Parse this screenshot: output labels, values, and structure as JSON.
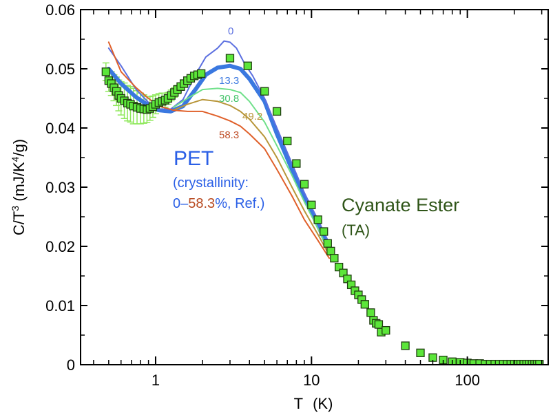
{
  "chart_data": {
    "type": "line",
    "x_scale": "log",
    "xlim": [
      0.33,
      330
    ],
    "ylim": [
      0,
      0.06
    ],
    "xlabel_main": "T",
    "xlabel_unit": "(K)",
    "ylabel_parts": {
      "c": "C/T",
      "exp3": "3",
      "mid": " (mJ/K",
      "exp4": "4",
      "end": "/g)"
    },
    "x_ticks": [
      1,
      10,
      100
    ],
    "x_tick_labels": [
      "1",
      "10",
      "100"
    ],
    "y_ticks": [
      0,
      0.01,
      0.02,
      0.03,
      0.04,
      0.05,
      0.06
    ],
    "y_tick_labels": [
      "0",
      "0.01",
      "0.02",
      "0.03",
      "0.04",
      "0.05",
      "0.06"
    ],
    "series": [
      {
        "name": "0",
        "color": "#5b6fe0",
        "width": 2,
        "label": "0",
        "x": [
          0.5,
          0.6,
          0.75,
          0.9,
          1.05,
          1.25,
          1.5,
          1.8,
          2.1,
          2.5,
          2.75,
          3.0,
          3.3,
          3.7,
          4.2,
          5.0,
          6.0,
          7.5,
          9.0,
          11.0,
          13.0
        ],
        "y": [
          0.0535,
          0.0505,
          0.0465,
          0.0443,
          0.0432,
          0.0432,
          0.0448,
          0.049,
          0.052,
          0.0535,
          0.0547,
          0.0545,
          0.0535,
          0.051,
          0.0488,
          0.045,
          0.04,
          0.034,
          0.029,
          0.0245,
          0.0205
        ]
      },
      {
        "name": "13.3",
        "color": "#3a78e0",
        "width": 6,
        "label": "13.3",
        "x": [
          0.5,
          0.6,
          0.75,
          0.9,
          1.05,
          1.25,
          1.5,
          1.8,
          2.1,
          2.5,
          3.0,
          3.5,
          4.0,
          5.0,
          6.0,
          7.5,
          9.0,
          11.0,
          13.0
        ],
        "y": [
          0.05,
          0.0475,
          0.0452,
          0.0438,
          0.043,
          0.0428,
          0.0437,
          0.0465,
          0.049,
          0.0502,
          0.0505,
          0.05,
          0.0483,
          0.0445,
          0.039,
          0.033,
          0.0285,
          0.0235,
          0.0195
        ]
      },
      {
        "name": "30.8",
        "color": "#6fe08a",
        "width": 2,
        "label": "30.8",
        "x": [
          1.3,
          1.6,
          2.0,
          2.5,
          3.0,
          3.5,
          4.0,
          5.0,
          6.0,
          7.5,
          9.0,
          11.0,
          13.0
        ],
        "y": [
          0.0435,
          0.045,
          0.0465,
          0.0467,
          0.0465,
          0.046,
          0.0445,
          0.041,
          0.037,
          0.032,
          0.0275,
          0.023,
          0.019
        ]
      },
      {
        "name": "49.2",
        "color": "#b8963a",
        "width": 2,
        "label": "49.2",
        "x": [
          1.3,
          1.6,
          2.0,
          2.5,
          3.0,
          3.5,
          4.0,
          5.0,
          6.0,
          7.5,
          9.0,
          11.0,
          13.0
        ],
        "y": [
          0.043,
          0.044,
          0.0448,
          0.0445,
          0.0438,
          0.0428,
          0.0415,
          0.0385,
          0.035,
          0.03,
          0.026,
          0.022,
          0.0185
        ]
      },
      {
        "name": "58.3",
        "color": "#e0602a",
        "width": 2,
        "label": "58.3",
        "x": [
          0.5,
          0.6,
          0.75,
          0.9,
          1.05,
          1.3,
          1.6,
          2.0,
          2.5,
          3.0,
          3.5,
          4.0,
          5.0,
          6.0,
          7.5,
          9.0,
          11.0,
          13.0
        ],
        "y": [
          0.0545,
          0.0495,
          0.0468,
          0.045,
          0.0437,
          0.043,
          0.0428,
          0.0428,
          0.042,
          0.0412,
          0.0403,
          0.039,
          0.0365,
          0.033,
          0.0285,
          0.0245,
          0.021,
          0.018
        ]
      }
    ],
    "scatter": {
      "name": "Cyanate Ester (TA)",
      "fill": "#5ce63a",
      "stroke": "#1f3d10",
      "error_color": "#8ee85a",
      "x": [
        0.48,
        0.5,
        0.52,
        0.54,
        0.56,
        0.58,
        0.6,
        0.63,
        0.66,
        0.69,
        0.72,
        0.76,
        0.8,
        0.84,
        0.88,
        0.92,
        0.96,
        1.0,
        1.05,
        1.1,
        1.15,
        1.2,
        1.26,
        1.32,
        1.38,
        1.45,
        1.52,
        1.6,
        1.68,
        1.77,
        1.86,
        1.96,
        3.0,
        3.9,
        5.0,
        6.0,
        7.0,
        8.0,
        9.0,
        10.0,
        11.0,
        12.0,
        12.7,
        13.3,
        14.0,
        15.0,
        16.0,
        17.0,
        18.0,
        19.0,
        20.0,
        21.0,
        22.0,
        24.0,
        25.0,
        26.0,
        27.0,
        28.0,
        30.0,
        40.0,
        50.0,
        60.0,
        70.0,
        80.0,
        90.0,
        100.0,
        110.0,
        120.0,
        130.0,
        140.0,
        150.0,
        160.0,
        170.0,
        180.0,
        190.0,
        200.0,
        210.0,
        220.0,
        230.0,
        240.0,
        250.0,
        260.0,
        270.0,
        280.0,
        290.0
      ],
      "y": [
        0.0495,
        0.048,
        0.0475,
        0.0468,
        0.0462,
        0.0455,
        0.045,
        0.0446,
        0.0442,
        0.044,
        0.0437,
        0.0435,
        0.0433,
        0.0432,
        0.0431,
        0.0433,
        0.0436,
        0.044,
        0.0443,
        0.0445,
        0.0447,
        0.045,
        0.0455,
        0.046,
        0.0465,
        0.047,
        0.0475,
        0.048,
        0.0484,
        0.0488,
        0.049,
        0.0492,
        0.0518,
        0.0505,
        0.0462,
        0.0428,
        0.0378,
        0.034,
        0.0305,
        0.027,
        0.0245,
        0.0225,
        0.0205,
        0.0192,
        0.018,
        0.0165,
        0.0155,
        0.0145,
        0.0135,
        0.0125,
        0.0118,
        0.011,
        0.0102,
        0.0088,
        0.0075,
        0.007,
        0.0068,
        0.0055,
        0.0058,
        0.0032,
        0.002,
        0.0012,
        0.0008,
        0.0005,
        0.0004,
        0.0003,
        0.0002,
        0.0002,
        0.0001,
        0.0001,
        0.0001,
        0.0001,
        0.0001,
        0.0001,
        0.0001,
        0.0001,
        0.0001,
        0.0001,
        0.0001,
        0.0001,
        0.0001,
        0.0001,
        0.0001,
        0.0001,
        0.0001
      ],
      "err": [
        0.0015,
        0.0018,
        0.002,
        0.0022,
        0.0024,
        0.0026,
        0.0028,
        0.003,
        0.003,
        0.003,
        0.003,
        0.0028,
        0.0026,
        0.0024,
        0.0022,
        0.002,
        0.0018,
        0.0016,
        0.0015,
        0.0014,
        0.0012,
        0.001,
        0.0009,
        0.0008,
        0.0007,
        0.0006,
        0.0005,
        0.0004,
        0.0004,
        0.0003,
        0.0003,
        0.0003,
        0.0004,
        0.0004,
        0.0004,
        0.0004,
        0.0004,
        0.0004,
        0.0004,
        0.0004,
        0.0004,
        0.0003,
        0.0003,
        0.0003,
        0.0003,
        0.0003,
        0.0003,
        0.0003,
        0.0003,
        0.0003,
        0.0003,
        0.0003,
        0.0003,
        0.0003,
        0.0003,
        0.0003,
        0.0003,
        0.0003,
        0.0003,
        0.0002,
        0.0002,
        0.0002,
        0.0002,
        0.0002,
        0.0002,
        0.0002,
        0.0002,
        0.0002,
        0.0002,
        0.0002,
        0.0002,
        0.0002,
        0.0002,
        0.0002,
        0.0002,
        0.0002,
        0.0002,
        0.0002,
        0.0002,
        0.0002,
        0.0002,
        0.0002,
        0.0002,
        0.0002,
        0.0002
      ]
    },
    "annotations": {
      "pet_title": "PET",
      "pet_title_color": "#2a5fe6",
      "pet_line1": "(crystallinity:",
      "pet_line1_color": "#2a5fe6",
      "pet_line2_a": "0–",
      "pet_line2_b": "58.3",
      "pet_line2_c": "%, Ref.)",
      "pet_line2_a_color": "#2a5fe6",
      "pet_line2_b_color": "#b84a20",
      "pet_line2_c_color": "#2a5fe6",
      "ce_title": "Cyanate Ester",
      "ce_sub": "(TA)",
      "ce_color": "#2f5518"
    }
  }
}
